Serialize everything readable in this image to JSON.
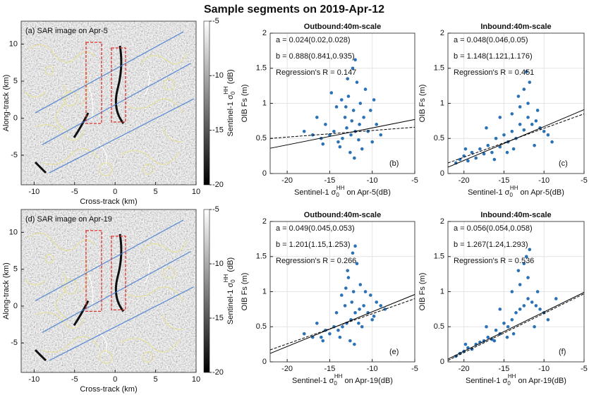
{
  "title": "Sample segments on 2019-Apr-12",
  "chart_data": [
    {
      "type": "image",
      "label": "(a) SAR image on Apr-5",
      "xlabel": "Cross-track (km)",
      "ylabel": "Along-track (km)",
      "xlim": [
        -11.6,
        10
      ],
      "ylim": [
        -9,
        13.1
      ],
      "xticks": [
        -10,
        -5,
        0,
        5,
        10
      ],
      "yticks": [
        -5,
        0,
        5,
        10
      ],
      "colorbar": {
        "clim": [
          -20,
          -5
        ],
        "ticks": [
          -5,
          -10,
          -15,
          -20
        ],
        "label": {
          "prefix": "Sentinel-1 σ",
          "sub": "0",
          "sup": "HH",
          "suffix": " (dB)"
        }
      }
    },
    {
      "type": "scatter",
      "title": "Outbound:40m-scale",
      "panel_label": "(b)",
      "color": "#2a72b5",
      "grid": true,
      "annotations": [
        "a = 0.024(0.02,0.028)",
        "b = 0.888(0.841,0.935)",
        "Regression's R = 0.147"
      ],
      "xlabel": {
        "prefix": "Sentinel-1 σ",
        "sub": "0",
        "sup": "HH",
        "suffix": " on Apr-5(dB)"
      },
      "ylabel": "OIB Fs (m)",
      "xlim": [
        -22,
        -5
      ],
      "ylim": [
        0,
        2
      ],
      "xticks": [
        -20,
        -15,
        -10,
        -5
      ],
      "yticks": [
        0,
        0.5,
        1,
        1.5,
        2
      ],
      "x": [
        -12,
        -11.5,
        -12.5,
        -13,
        -11,
        -12.2,
        -13.5,
        -14,
        -10.5,
        -12.8,
        -11.8,
        -12.3,
        -12,
        -13.2,
        -14.5,
        -15,
        -15.5,
        -16,
        -17,
        -18,
        -10,
        -9.5,
        -9,
        -11.2,
        -12.6,
        -13.8,
        -11.4,
        -10.8,
        -13.6,
        -14.2,
        -12.9,
        -11.6,
        -12.4,
        -13.1,
        -10.2,
        -15.8,
        -16.5,
        -9.8,
        -14.8,
        -12.1
      ],
      "values": [
        0.6,
        0.7,
        0.55,
        0.65,
        0.8,
        0.9,
        0.5,
        0.45,
        0.6,
        1.1,
        1.3,
        1.5,
        1.62,
        0.8,
        0.6,
        0.55,
        0.7,
        0.5,
        0.55,
        0.6,
        0.45,
        0.7,
        0.55,
        0.35,
        0.3,
        0.38,
        1.0,
        1.2,
        1.05,
        0.95,
        1.35,
        0.48,
        0.75,
        0.95,
        0.9,
        0.42,
        0.8,
        1.05,
        1.15,
        0.22
      ],
      "fit_lines": [
        {
          "style": "solid",
          "x": [
            -22,
            -5
          ],
          "values": [
            0.36,
            0.77
          ]
        },
        {
          "style": "dashed",
          "x": [
            -22,
            -5
          ],
          "values": [
            0.5,
            0.66
          ]
        }
      ]
    },
    {
      "type": "scatter",
      "title": "Inbound:40m-scale",
      "panel_label": "(c)",
      "color": "#2a72b5",
      "grid": true,
      "annotations": [
        "a = 0.048(0.046,0.05)",
        "b = 1.148(1.121,1.176)",
        "Regression's R = 0.451"
      ],
      "xlabel": {
        "prefix": "Sentinel-1 σ",
        "sub": "0",
        "sup": "HH",
        "suffix": " on Apr-5(dB)"
      },
      "ylabel": "OIB Fs (m)",
      "xlim": [
        -22,
        -5
      ],
      "ylim": [
        0,
        2
      ],
      "xticks": [
        -20,
        -15,
        -10,
        -5
      ],
      "yticks": [
        0,
        0.5,
        1,
        1.5,
        2
      ],
      "x": [
        -21,
        -20.5,
        -20,
        -19.5,
        -19,
        -18.5,
        -18,
        -17.5,
        -17,
        -16.5,
        -16,
        -15.5,
        -15,
        -14.5,
        -14,
        -13.5,
        -13,
        -12.5,
        -12,
        -11.5,
        -11,
        -10.5,
        -10,
        -9.5,
        -12,
        -13,
        -14,
        -12.5,
        -11.8,
        -13.2,
        -15.5,
        -17.2,
        -19.8,
        -12.2,
        -11.2,
        -10.8,
        -14.6,
        -13.8,
        -16.2,
        -9
      ],
      "values": [
        0.15,
        0.2,
        0.25,
        0.18,
        0.3,
        0.22,
        0.35,
        0.28,
        0.4,
        0.3,
        0.5,
        0.38,
        0.55,
        0.45,
        0.6,
        0.5,
        0.7,
        0.62,
        0.8,
        0.7,
        0.75,
        0.65,
        0.6,
        0.55,
        1.0,
        0.95,
        0.85,
        1.2,
        1.3,
        1.1,
        0.8,
        0.65,
        0.35,
        1.45,
        0.4,
        0.9,
        0.3,
        0.35,
        0.2,
        0.45
      ],
      "fit_lines": [
        {
          "style": "solid",
          "x": [
            -22,
            -5
          ],
          "values": [
            0.09,
            0.91
          ]
        },
        {
          "style": "dashed",
          "x": [
            -22,
            -5
          ],
          "values": [
            0.15,
            0.85
          ]
        }
      ]
    },
    {
      "type": "image",
      "label": "(d) SAR image on Apr-19",
      "xlabel": "Cross-track (km)",
      "ylabel": "Along-track (km)",
      "xlim": [
        -11.6,
        10
      ],
      "ylim": [
        -9,
        13.1
      ],
      "xticks": [
        -10,
        -5,
        0,
        5,
        10
      ],
      "yticks": [
        -5,
        0,
        5,
        10
      ],
      "colorbar": {
        "clim": [
          -20,
          -5
        ],
        "ticks": [
          -5,
          -10,
          -15,
          -20
        ],
        "label": {
          "prefix": "Sentinel-1 σ",
          "sub": "0",
          "sup": "HH",
          "suffix": " (dB)"
        }
      }
    },
    {
      "type": "scatter",
      "title": "Outbound:40m-scale",
      "panel_label": "(e)",
      "color": "#2a72b5",
      "grid": true,
      "annotations": [
        "a = 0.049(0.045,0.053)",
        "b = 1.201(1.15,1.253)",
        "Regression's R = 0.266"
      ],
      "xlabel": {
        "prefix": "Sentinel-1 σ",
        "sub": "0",
        "sup": "HH",
        "suffix": " on Apr-19(dB)"
      },
      "ylabel": "OIB Fs (m)",
      "xlim": [
        -22,
        -5
      ],
      "ylim": [
        0,
        2
      ],
      "xticks": [
        -20,
        -15,
        -10,
        -5
      ],
      "yticks": [
        0,
        0.5,
        1,
        1.5,
        2
      ],
      "x": [
        -12,
        -11.5,
        -12.5,
        -13,
        -11,
        -12.2,
        -13.5,
        -14,
        -10.5,
        -12.8,
        -11.8,
        -12.3,
        -12,
        -13.2,
        -14.5,
        -15,
        -15.5,
        -16,
        -17,
        -18,
        -10,
        -9.5,
        -9,
        -11.2,
        -12.6,
        -13.8,
        -11.4,
        -10.8,
        -13.6,
        -14.2,
        -12.9,
        -11.6,
        -12.4,
        -13.1,
        -10.2,
        -15.8,
        -16.5,
        -9.8,
        -8.5,
        -12.1
      ],
      "values": [
        0.7,
        0.75,
        0.6,
        0.55,
        0.8,
        1.0,
        0.5,
        0.45,
        0.7,
        1.2,
        1.4,
        1.55,
        1.65,
        0.8,
        0.5,
        0.4,
        0.45,
        0.35,
        0.35,
        0.4,
        0.6,
        0.85,
        0.8,
        0.5,
        0.3,
        0.35,
        1.1,
        1.0,
        0.95,
        0.7,
        1.3,
        0.55,
        0.85,
        1.05,
        0.95,
        0.3,
        0.55,
        0.65,
        0.75,
        0.25
      ],
      "fit_lines": [
        {
          "style": "solid",
          "x": [
            -22,
            -5
          ],
          "values": [
            0.12,
            0.96
          ]
        },
        {
          "style": "dashed",
          "x": [
            -22,
            -5
          ],
          "values": [
            0.17,
            0.9
          ]
        }
      ]
    },
    {
      "type": "scatter",
      "title": "Inbound:40m-scale",
      "panel_label": "(f)",
      "color": "#2a72b5",
      "grid": true,
      "annotations": [
        "a = 0.056(0.054,0.058)",
        "b = 1.267(1.24,1.293)",
        "Regression's R = 0.536"
      ],
      "xlabel": {
        "prefix": "Sentinel-1 σ",
        "sub": "0",
        "sup": "HH",
        "suffix": " on Apr-19(dB)"
      },
      "ylabel": "OIB Fs (m)",
      "xlim": [
        -22,
        -5
      ],
      "ylim": [
        0,
        2
      ],
      "xticks": [
        -20,
        -15,
        -10,
        -5
      ],
      "yticks": [
        0,
        0.5,
        1,
        1.5,
        2
      ],
      "x": [
        -21,
        -20.5,
        -20,
        -19.5,
        -19,
        -18.5,
        -18,
        -17.5,
        -17,
        -16.5,
        -16,
        -15.5,
        -15,
        -14.5,
        -14,
        -13.5,
        -13,
        -12.5,
        -12,
        -11.5,
        -11,
        -10.5,
        -10,
        -9.5,
        -12,
        -13,
        -14,
        -12.5,
        -11.8,
        -13.2,
        -15.5,
        -17.2,
        -19.8,
        -12.2,
        -11.2,
        -10.8,
        -14.6,
        -13.8,
        -16.2,
        -8.5
      ],
      "values": [
        0.08,
        0.12,
        0.15,
        0.2,
        0.18,
        0.25,
        0.28,
        0.3,
        0.35,
        0.32,
        0.45,
        0.4,
        0.55,
        0.5,
        0.6,
        0.7,
        0.75,
        0.8,
        0.9,
        0.85,
        0.8,
        0.75,
        0.7,
        0.6,
        1.2,
        1.1,
        1.0,
        1.4,
        1.6,
        1.3,
        0.75,
        0.5,
        0.25,
        1.5,
        0.5,
        1.0,
        0.35,
        0.4,
        0.3,
        0.9
      ],
      "fit_lines": [
        {
          "style": "solid",
          "x": [
            -22,
            -5
          ],
          "values": [
            0.04,
            0.99
          ]
        },
        {
          "style": "dashed",
          "x": [
            -22,
            -5
          ],
          "values": [
            0.02,
            0.97
          ]
        }
      ]
    }
  ]
}
